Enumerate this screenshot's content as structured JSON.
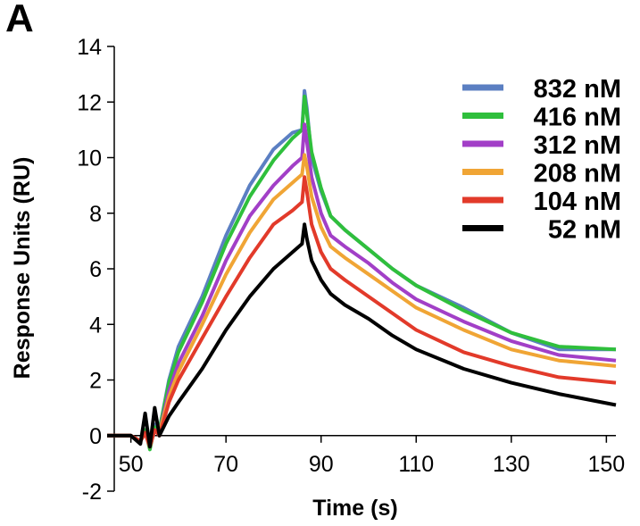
{
  "panel_label": "A",
  "chart_data": {
    "type": "line",
    "title": "",
    "xlabel": "Time (s)",
    "ylabel": "Response Units (RU)",
    "xlim": [
      45,
      152
    ],
    "ylim": [
      -2,
      14
    ],
    "xticks": [
      50,
      70,
      90,
      110,
      130,
      150
    ],
    "yticks": [
      -2,
      0,
      2,
      4,
      6,
      8,
      10,
      12,
      14
    ],
    "legend_position": "right",
    "series": [
      {
        "name": "832 nM",
        "color": "#5b7fc2",
        "x": [
          45,
          50,
          52,
          53,
          54,
          55,
          56,
          58,
          60,
          65,
          70,
          75,
          80,
          84,
          86,
          86.5,
          87,
          88,
          90,
          92,
          95,
          100,
          105,
          110,
          120,
          130,
          140,
          152
        ],
        "y": [
          0,
          0,
          -0.2,
          0.2,
          -0.3,
          0.4,
          0.2,
          2.0,
          3.2,
          5.0,
          7.2,
          9.0,
          10.3,
          10.9,
          11.0,
          12.4,
          11.8,
          10.0,
          8.8,
          7.9,
          7.4,
          6.7,
          6.0,
          5.4,
          4.6,
          3.7,
          3.1,
          3.1
        ]
      },
      {
        "name": "416 nM",
        "color": "#2fbf3c",
        "x": [
          45,
          50,
          52,
          53,
          54,
          55,
          56,
          58,
          60,
          65,
          70,
          75,
          80,
          84,
          86,
          86.5,
          87,
          88,
          90,
          92,
          95,
          100,
          105,
          110,
          120,
          130,
          140,
          152
        ],
        "y": [
          0,
          0,
          -0.2,
          0.2,
          -0.5,
          0.3,
          0.2,
          1.9,
          3.0,
          4.8,
          6.9,
          8.6,
          9.9,
          10.7,
          11.0,
          12.2,
          11.6,
          10.2,
          8.9,
          7.9,
          7.4,
          6.7,
          6.0,
          5.4,
          4.5,
          3.7,
          3.2,
          3.1
        ]
      },
      {
        "name": "312 nM",
        "color": "#a23fc7",
        "x": [
          45,
          50,
          52,
          53,
          54,
          55,
          56,
          58,
          60,
          65,
          70,
          75,
          80,
          84,
          86,
          86.5,
          87,
          88,
          90,
          92,
          95,
          100,
          105,
          110,
          120,
          130,
          140,
          152
        ],
        "y": [
          0,
          0,
          -0.2,
          0.1,
          -0.4,
          0.2,
          0.1,
          1.6,
          2.6,
          4.3,
          6.3,
          7.9,
          9.0,
          9.7,
          10.0,
          11.2,
          10.6,
          9.3,
          8.0,
          7.2,
          6.8,
          6.2,
          5.5,
          4.9,
          4.1,
          3.4,
          2.9,
          2.7
        ]
      },
      {
        "name": "208 nM",
        "color": "#f0a535",
        "x": [
          45,
          50,
          52,
          53,
          54,
          55,
          56,
          58,
          60,
          65,
          70,
          75,
          80,
          84,
          86,
          86.5,
          87,
          88,
          90,
          92,
          95,
          100,
          105,
          110,
          120,
          130,
          140,
          152
        ],
        "y": [
          0,
          0,
          -0.2,
          0.1,
          -0.4,
          0.2,
          0.1,
          1.4,
          2.3,
          4.0,
          5.8,
          7.3,
          8.5,
          9.1,
          9.4,
          10.1,
          9.7,
          8.6,
          7.5,
          6.8,
          6.4,
          5.8,
          5.2,
          4.6,
          3.8,
          3.1,
          2.7,
          2.5
        ]
      },
      {
        "name": "104 nM",
        "color": "#e23a2a",
        "x": [
          45,
          50,
          52,
          53,
          54,
          55,
          56,
          58,
          60,
          65,
          70,
          75,
          80,
          84,
          86,
          86.5,
          87,
          88,
          90,
          92,
          95,
          100,
          105,
          110,
          120,
          130,
          140,
          152
        ],
        "y": [
          0,
          0,
          -0.2,
          0.1,
          -0.4,
          0.2,
          0.0,
          1.2,
          2.0,
          3.5,
          5.0,
          6.4,
          7.6,
          8.1,
          8.4,
          9.3,
          8.8,
          7.6,
          6.6,
          6.0,
          5.6,
          5.0,
          4.4,
          3.8,
          3.0,
          2.5,
          2.1,
          1.9
        ]
      },
      {
        "name": "52 nM",
        "color": "#000000",
        "x": [
          45,
          50,
          52,
          53,
          54,
          55,
          56,
          58,
          60,
          65,
          70,
          75,
          80,
          84,
          86,
          86.5,
          87,
          88,
          90,
          92,
          95,
          100,
          105,
          110,
          120,
          130,
          140,
          152
        ],
        "y": [
          0,
          0,
          -0.3,
          0.8,
          -0.4,
          1.0,
          0.0,
          0.7,
          1.2,
          2.4,
          3.8,
          5.0,
          6.0,
          6.6,
          6.9,
          7.6,
          7.1,
          6.3,
          5.6,
          5.1,
          4.7,
          4.2,
          3.6,
          3.1,
          2.4,
          1.9,
          1.5,
          1.1
        ]
      }
    ]
  }
}
